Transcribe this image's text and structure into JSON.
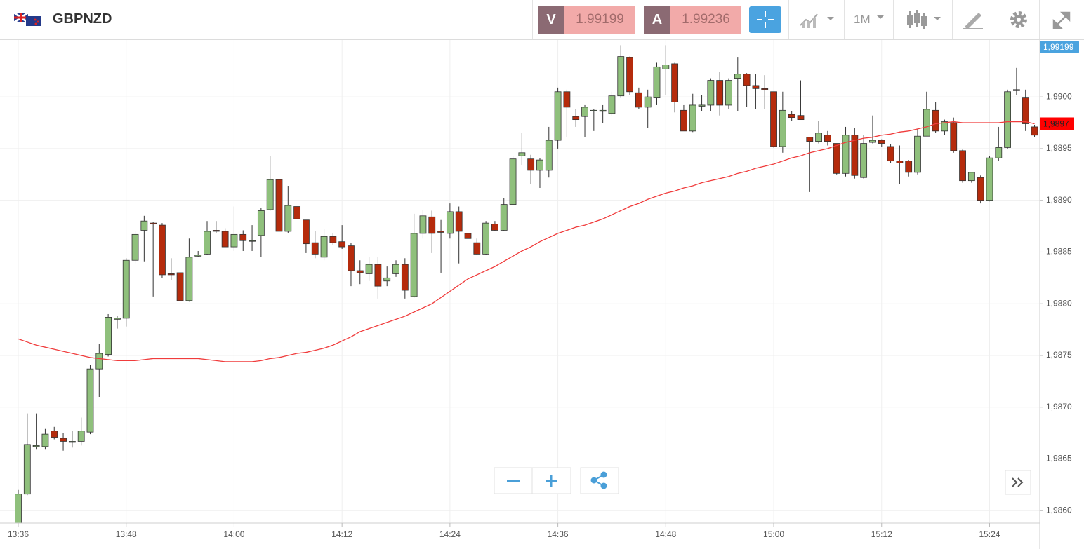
{
  "header": {
    "symbol": "GBPNZD",
    "bid_letter": "V",
    "bid": "1.99199",
    "ask_letter": "A",
    "ask": "1.99236",
    "timeframe": "1M"
  },
  "chart_data": {
    "type": "candlestick",
    "categories": [
      "13:36",
      null,
      null,
      null,
      null,
      null,
      null,
      null,
      null,
      null,
      null,
      null,
      "13:48",
      null,
      null,
      null,
      null,
      null,
      null,
      null,
      null,
      null,
      null,
      null,
      "14:00",
      null,
      null,
      null,
      null,
      null,
      null,
      null,
      null,
      null,
      null,
      null,
      "14:12",
      null,
      null,
      null,
      null,
      null,
      null,
      null,
      null,
      null,
      null,
      null,
      "14:24",
      null,
      null,
      null,
      null,
      null,
      null,
      null,
      null,
      null,
      null,
      null,
      "14:36",
      null,
      null,
      null,
      null,
      null,
      null,
      null,
      null,
      null,
      null,
      null,
      "14:48",
      null,
      null,
      null,
      null,
      null,
      null,
      null,
      null,
      null,
      null,
      null,
      "15:00",
      null,
      null,
      null,
      null,
      null,
      null,
      null,
      null,
      null,
      null,
      null,
      "15:12",
      null,
      null,
      null,
      null,
      null,
      null,
      null,
      null,
      null,
      null,
      null,
      "15:24",
      null,
      null,
      null,
      null,
      null
    ],
    "open": [
      1.9858,
      1.98616,
      1.98662,
      1.98662,
      1.98677,
      1.9867,
      1.98666,
      1.98667,
      1.98676,
      1.98737,
      1.98751,
      1.98785,
      1.98786,
      1.98842,
      1.98871,
      1.98878,
      1.98876,
      1.98829,
      1.9883,
      1.98803,
      1.98846,
      1.98848,
      1.98871,
      1.9887,
      1.98855,
      1.98867,
      1.98861,
      1.98866,
      1.98891,
      1.9892,
      1.9887,
      1.98894,
      1.98881,
      1.98859,
      1.98845,
      1.98865,
      1.9886,
      1.98856,
      1.98832,
      1.98829,
      1.98838,
      1.98822,
      1.98829,
      1.98838,
      1.98807,
      1.98868,
      1.98884,
      1.9887,
      1.98868,
      1.98889,
      1.98868,
      1.98859,
      1.98848,
      1.98877,
      1.98871,
      1.98896,
      1.98943,
      1.9894,
      1.98929,
      1.98929,
      1.98958,
      1.99005,
      1.98981,
      1.98981,
      1.98987,
      1.98986,
      1.98984,
      1.99001,
      1.99038,
      1.99004,
      1.9899,
      1.98999,
      1.99027,
      1.99032,
      1.98987,
      1.98967,
      1.98991,
      1.98992,
      1.99016,
      1.98992,
      1.99018,
      1.99022,
      1.99011,
      1.99008,
      1.99005,
      1.98952,
      1.98983,
      1.98982,
      1.98961,
      1.98957,
      1.98963,
      1.98955,
      1.98926,
      1.98963,
      1.98922,
      1.98956,
      1.98958,
      1.98952,
      1.98938,
      1.98938,
      1.98927,
      1.98962,
      1.98987,
      1.98967,
      1.98975,
      1.98948,
      1.98919,
      1.98922,
      1.989,
      1.98941,
      1.98951,
      1.99006,
      1.98999,
      1.98971
    ],
    "high": [
      1.9862,
      1.98694,
      1.98694,
      1.98679,
      1.98681,
      1.98675,
      1.98677,
      1.9869,
      1.98741,
      1.98761,
      1.9879,
      1.98788,
      1.98844,
      1.9887,
      1.98885,
      1.98879,
      1.98878,
      1.98844,
      1.9883,
      1.98863,
      1.98851,
      1.9888,
      1.9888,
      1.98873,
      1.98894,
      1.98871,
      1.98876,
      1.98893,
      1.98943,
      1.98936,
      1.98914,
      1.98894,
      1.98881,
      1.9887,
      1.98872,
      1.98868,
      1.98876,
      1.98859,
      1.98842,
      1.98845,
      1.98845,
      1.98836,
      1.98842,
      1.98844,
      1.98887,
      1.98891,
      1.9889,
      1.98881,
      1.98897,
      1.98894,
      1.98873,
      1.98863,
      1.9888,
      1.9888,
      1.98902,
      1.98943,
      1.98965,
      1.98944,
      1.98941,
      1.98971,
      1.99009,
      1.99007,
      1.98988,
      1.98992,
      1.98988,
      1.98992,
      1.99005,
      1.9905,
      1.99039,
      1.99009,
      1.99007,
      1.99033,
      1.9905,
      1.99033,
      1.98992,
      1.99003,
      1.99002,
      1.99018,
      1.99024,
      1.99018,
      1.99038,
      1.99023,
      1.99022,
      1.99021,
      1.99005,
      1.99005,
      1.98986,
      1.99016,
      1.98961,
      1.98977,
      1.98967,
      1.98955,
      1.98971,
      1.9897,
      1.98963,
      1.98982,
      1.98959,
      1.98954,
      1.98953,
      1.98939,
      1.98969,
      1.99005,
      1.98995,
      1.98978,
      1.9898,
      1.98949,
      1.98927,
      1.98924,
      1.98943,
      1.98971,
      1.99007,
      1.99028,
      1.99007,
      1.98973
    ],
    "low": [
      1.9857,
      1.98615,
      1.98659,
      1.98659,
      1.98669,
      1.98658,
      1.98661,
      1.98663,
      1.98674,
      1.9871,
      1.98749,
      1.98776,
      1.98778,
      1.98839,
      1.98841,
      1.98807,
      1.98825,
      1.98823,
      1.98803,
      1.98802,
      1.98845,
      1.98847,
      1.98868,
      1.98855,
      1.98851,
      1.98851,
      1.98851,
      1.98845,
      1.9889,
      1.98868,
      1.98868,
      1.98882,
      1.98849,
      1.98844,
      1.98842,
      1.98857,
      1.98853,
      1.98817,
      1.98819,
      1.98822,
      1.98805,
      1.98817,
      1.98826,
      1.98805,
      1.98806,
      1.98863,
      1.98849,
      1.9883,
      1.98863,
      1.98839,
      1.98856,
      1.98847,
      1.98847,
      1.9887,
      1.9887,
      1.98895,
      1.98934,
      1.98916,
      1.98912,
      1.98922,
      1.9895,
      1.98961,
      1.98971,
      1.98961,
      1.98967,
      1.98975,
      1.98982,
      1.98999,
      1.99002,
      1.98988,
      1.9897,
      1.98992,
      1.99002,
      1.98985,
      1.98967,
      1.98966,
      1.98986,
      1.98986,
      1.98982,
      1.98988,
      1.98986,
      1.9899,
      1.98988,
      1.98988,
      1.98951,
      1.98946,
      1.98977,
      1.98978,
      1.98908,
      1.98955,
      1.98953,
      1.98925,
      1.98923,
      1.98921,
      1.98921,
      1.98955,
      1.98952,
      1.98936,
      1.98916,
      1.98923,
      1.98925,
      1.98962,
      1.98965,
      1.98963,
      1.98946,
      1.98917,
      1.98917,
      1.98897,
      1.98899,
      1.98938,
      1.9895,
      1.99002,
      1.98967,
      1.98961
    ],
    "close": [
      1.98616,
      1.98664,
      1.98663,
      1.98674,
      1.98671,
      1.98667,
      1.98667,
      1.98677,
      1.98737,
      1.98752,
      1.98787,
      1.98786,
      1.98842,
      1.98867,
      1.9888,
      1.98877,
      1.98828,
      1.98828,
      1.98803,
      1.98845,
      1.98847,
      1.9887,
      1.9887,
      1.98855,
      1.98867,
      1.98861,
      1.98861,
      1.9889,
      1.9892,
      1.9887,
      1.98895,
      1.98882,
      1.98858,
      1.98848,
      1.98865,
      1.98859,
      1.98855,
      1.98832,
      1.9883,
      1.98838,
      1.98817,
      1.98825,
      1.98838,
      1.98813,
      1.98868,
      1.98885,
      1.98868,
      1.98869,
      1.98889,
      1.9887,
      1.98863,
      1.98848,
      1.98878,
      1.98871,
      1.98896,
      1.9894,
      1.98946,
      1.98929,
      1.98939,
      1.98958,
      1.99005,
      1.9899,
      1.98978,
      1.9899,
      1.98987,
      1.98987,
      1.99001,
      1.99039,
      1.99005,
      1.9899,
      1.99,
      1.99029,
      1.99031,
      1.98995,
      1.98967,
      1.98992,
      1.98992,
      1.99016,
      1.98992,
      1.99016,
      1.99022,
      1.99011,
      1.99008,
      1.99007,
      1.98952,
      1.98987,
      1.9898,
      1.98978,
      1.98957,
      1.98965,
      1.98957,
      1.98926,
      1.98963,
      1.98924,
      1.98955,
      1.98958,
      1.98955,
      1.98938,
      1.98936,
      1.98927,
      1.98962,
      1.98988,
      1.98967,
      1.98976,
      1.98948,
      1.98919,
      1.98927,
      1.989,
      1.98941,
      1.98951,
      1.99005,
      1.99007,
      1.98974,
      1.98963
    ],
    "up_color": "#8fc07c",
    "down_color": "#b52b0c",
    "overlays": [
      {
        "type": "line",
        "color": "#f03c3c",
        "values": [
          1.98766,
          1.98763,
          1.9876,
          1.98758,
          1.98756,
          1.98754,
          1.98752,
          1.9875,
          1.98748,
          1.98747,
          1.98746,
          1.98745,
          1.98745,
          1.98745,
          1.98746,
          1.98747,
          1.98747,
          1.98747,
          1.98747,
          1.98747,
          1.98747,
          1.98746,
          1.98745,
          1.98744,
          1.98744,
          1.98744,
          1.98744,
          1.98745,
          1.98747,
          1.98748,
          1.9875,
          1.98752,
          1.98753,
          1.98755,
          1.98757,
          1.9876,
          1.98764,
          1.98768,
          1.98773,
          1.98776,
          1.98779,
          1.98782,
          1.98785,
          1.98788,
          1.98792,
          1.98796,
          1.988,
          1.98806,
          1.98812,
          1.98818,
          1.98824,
          1.98828,
          1.98832,
          1.98836,
          1.98841,
          1.98846,
          1.98851,
          1.98855,
          1.9886,
          1.98864,
          1.98868,
          1.98871,
          1.98874,
          1.98876,
          1.98879,
          1.98882,
          1.98886,
          1.9889,
          1.98894,
          1.98897,
          1.98901,
          1.98904,
          1.98907,
          1.98909,
          1.98912,
          1.98914,
          1.98917,
          1.98919,
          1.98921,
          1.98923,
          1.98926,
          1.98928,
          1.98931,
          1.98933,
          1.98935,
          1.98938,
          1.98941,
          1.98943,
          1.98946,
          1.98948,
          1.9895,
          1.98953,
          1.98956,
          1.98958,
          1.9896,
          1.98961,
          1.98963,
          1.98964,
          1.98966,
          1.98967,
          1.98969,
          1.98971,
          1.98974,
          1.98975,
          1.98976,
          1.98975,
          1.98975,
          1.98975,
          1.98975,
          1.98975,
          1.98976,
          1.98976,
          1.98976,
          1.98974
        ],
        "last_label": "1,9897"
      }
    ],
    "bid_marker": {
      "value": 1.99199,
      "label": "1,99199",
      "color": "#4aa3df"
    },
    "ylim": [
      1.98588,
      1.99055
    ],
    "yticks": [
      {
        "value": 1.986,
        "label": "1,9860"
      },
      {
        "value": 1.9865,
        "label": "1,9865"
      },
      {
        "value": 1.987,
        "label": "1,9870"
      },
      {
        "value": 1.9875,
        "label": "1,9875"
      },
      {
        "value": 1.988,
        "label": "1,9880"
      },
      {
        "value": 1.9885,
        "label": "1,9885"
      },
      {
        "value": 1.989,
        "label": "1,9890"
      },
      {
        "value": 1.9895,
        "label": "1,9895"
      },
      {
        "value": 1.99,
        "label": "1,9900"
      }
    ],
    "grid": true
  }
}
